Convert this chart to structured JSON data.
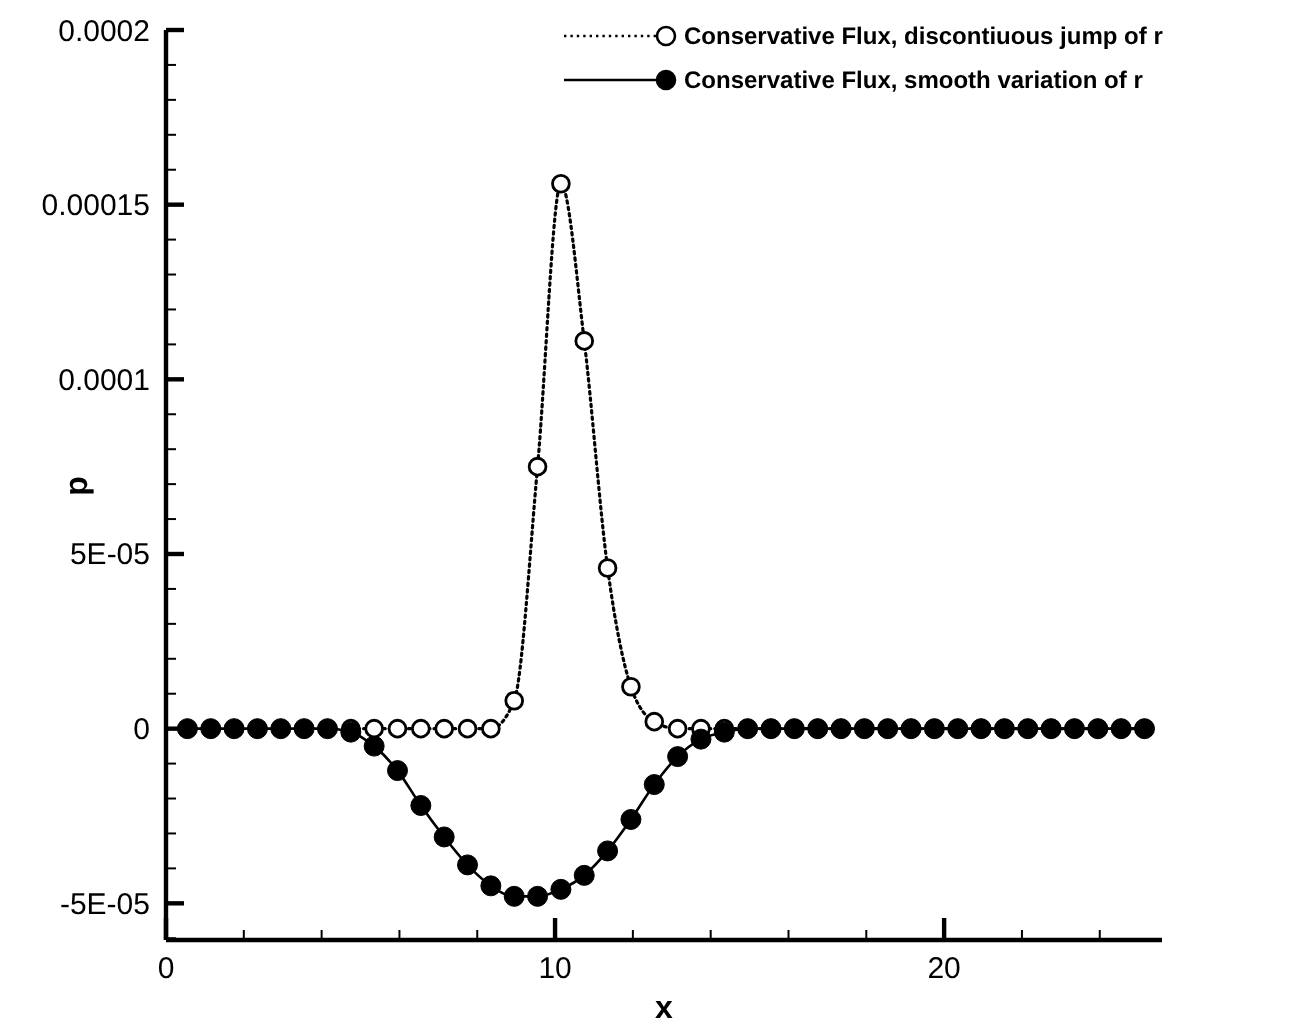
{
  "chart_data": {
    "type": "line",
    "xlabel": "x",
    "ylabel": "p",
    "x": [
      0.55,
      1.15,
      1.75,
      2.35,
      2.95,
      3.55,
      4.15,
      4.75,
      5.35,
      5.95,
      6.55,
      7.15,
      7.75,
      8.35,
      8.95,
      9.55,
      10.15,
      10.75,
      11.35,
      11.95,
      12.55,
      13.15,
      13.75,
      14.35,
      14.95,
      15.55,
      16.15,
      16.75,
      17.35,
      17.95,
      18.55,
      19.15,
      19.75,
      20.35,
      20.95,
      21.55,
      22.15,
      22.75,
      23.35,
      23.95,
      24.55,
      25.15
    ],
    "series": [
      {
        "name": "Conservative Flux, discontiuous jump of r",
        "color": "#000000",
        "line_style": "dotted",
        "values": [
          null,
          null,
          null,
          null,
          null,
          null,
          null,
          0,
          0,
          0,
          0,
          0,
          0,
          0,
          8e-06,
          7.5e-05,
          0.000156,
          0.000111,
          4.6e-05,
          1.2e-05,
          2e-06,
          0,
          0,
          0,
          0,
          0,
          0,
          0,
          0,
          0,
          0,
          0,
          0,
          0,
          0,
          0,
          0,
          0,
          0,
          0,
          0,
          0
        ]
      },
      {
        "name": "Conservative Flux, smooth variation of r",
        "color": "#000000",
        "line_style": "solid",
        "values": [
          0,
          0,
          0,
          0,
          0,
          0,
          0,
          -1e-06,
          -5e-06,
          -1.2e-05,
          -2.2e-05,
          -3.1e-05,
          -3.9e-05,
          -4.5e-05,
          -4.8e-05,
          -4.8e-05,
          -4.6e-05,
          -4.2e-05,
          -3.5e-05,
          -2.6e-05,
          -1.6e-05,
          -8e-06,
          -3e-06,
          -1e-06,
          0,
          0,
          0,
          0,
          0,
          0,
          0,
          0,
          0,
          0,
          0,
          0,
          0,
          0,
          0,
          0,
          0,
          0
        ]
      }
    ],
    "marker": "circle",
    "xlim": [
      0,
      25.6
    ],
    "xticks": [
      0,
      {
        "value": 2,
        "label": null
      },
      {
        "value": 4,
        "label": null
      },
      {
        "value": 6,
        "label": null
      },
      {
        "value": 8,
        "label": null
      },
      10,
      {
        "value": 12,
        "label": null
      },
      {
        "value": 14,
        "label": null
      },
      {
        "value": 16,
        "label": null
      },
      {
        "value": 18,
        "label": null
      },
      20,
      {
        "value": 22,
        "label": null
      },
      {
        "value": 24,
        "label": null
      }
    ],
    "ylim": [
      -6.05e-05,
      0.0002
    ],
    "yticks": [
      {
        "value": -6e-05,
        "label": null
      },
      {
        "value": -5e-05,
        "label": "-5E-05"
      },
      {
        "value": -4e-05,
        "label": null
      },
      {
        "value": -3e-05,
        "label": null
      },
      {
        "value": -2e-05,
        "label": null
      },
      {
        "value": -1e-05,
        "label": null
      },
      0,
      {
        "value": 1e-05,
        "label": null
      },
      {
        "value": 2e-05,
        "label": null
      },
      {
        "value": 3e-05,
        "label": null
      },
      {
        "value": 4e-05,
        "label": null
      },
      {
        "value": 5e-05,
        "label": "5E-05"
      },
      {
        "value": 6e-05,
        "label": null
      },
      {
        "value": 7e-05,
        "label": null
      },
      {
        "value": 8e-05,
        "label": null
      },
      {
        "value": 9e-05,
        "label": null
      },
      {
        "value": 0.0001,
        "label": "0.0001"
      },
      {
        "value": 0.00011,
        "label": null
      },
      {
        "value": 0.00012,
        "label": null
      },
      {
        "value": 0.00013,
        "label": null
      },
      {
        "value": 0.00014,
        "label": null
      },
      {
        "value": 0.00015,
        "label": "0.00015"
      },
      {
        "value": 0.00016,
        "label": null
      },
      {
        "value": 0.00017,
        "label": null
      },
      {
        "value": 0.00018,
        "label": null
      },
      {
        "value": 0.00019,
        "label": null
      },
      {
        "value": 0.0002,
        "label": "0.0002"
      }
    ],
    "grid": false,
    "legend": "top right"
  }
}
